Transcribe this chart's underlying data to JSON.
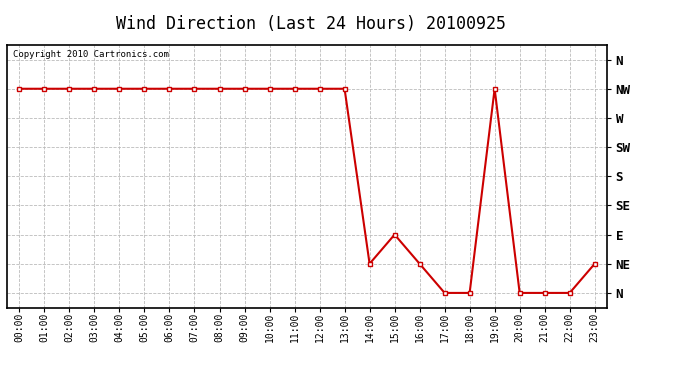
{
  "title": "Wind Direction (Last 24 Hours) 20100925",
  "copyright": "Copyright 2010 Cartronics.com",
  "background_color": "#ffffff",
  "line_color": "#cc0000",
  "grid_color": "#bbbbbb",
  "x_labels": [
    "00:00",
    "01:00",
    "02:00",
    "03:00",
    "04:00",
    "05:00",
    "06:00",
    "07:00",
    "08:00",
    "09:00",
    "10:00",
    "11:00",
    "12:00",
    "13:00",
    "14:00",
    "15:00",
    "16:00",
    "17:00",
    "18:00",
    "19:00",
    "20:00",
    "21:00",
    "22:00",
    "23:00"
  ],
  "y_labels": [
    "N",
    "NE",
    "E",
    "SE",
    "S",
    "SW",
    "W",
    "NW",
    "N"
  ],
  "y_tick_vals": [
    0,
    1,
    2,
    3,
    4,
    5,
    6,
    7,
    8
  ],
  "data_hours": [
    0,
    1,
    2,
    3,
    4,
    5,
    6,
    7,
    8,
    9,
    10,
    11,
    12,
    13,
    14,
    15,
    16,
    17,
    18,
    19,
    20,
    21,
    22,
    23
  ],
  "data_wind": [
    7,
    7,
    7,
    7,
    7,
    7,
    7,
    7,
    7,
    7,
    7,
    7,
    7,
    7,
    1,
    2,
    1,
    0,
    0,
    7,
    0,
    0,
    0,
    1
  ],
  "ylim": [
    -0.5,
    8.5
  ],
  "xlim": [
    -0.5,
    23.5
  ],
  "title_fontsize": 12,
  "tick_fontsize": 7,
  "ytick_fontsize": 9
}
